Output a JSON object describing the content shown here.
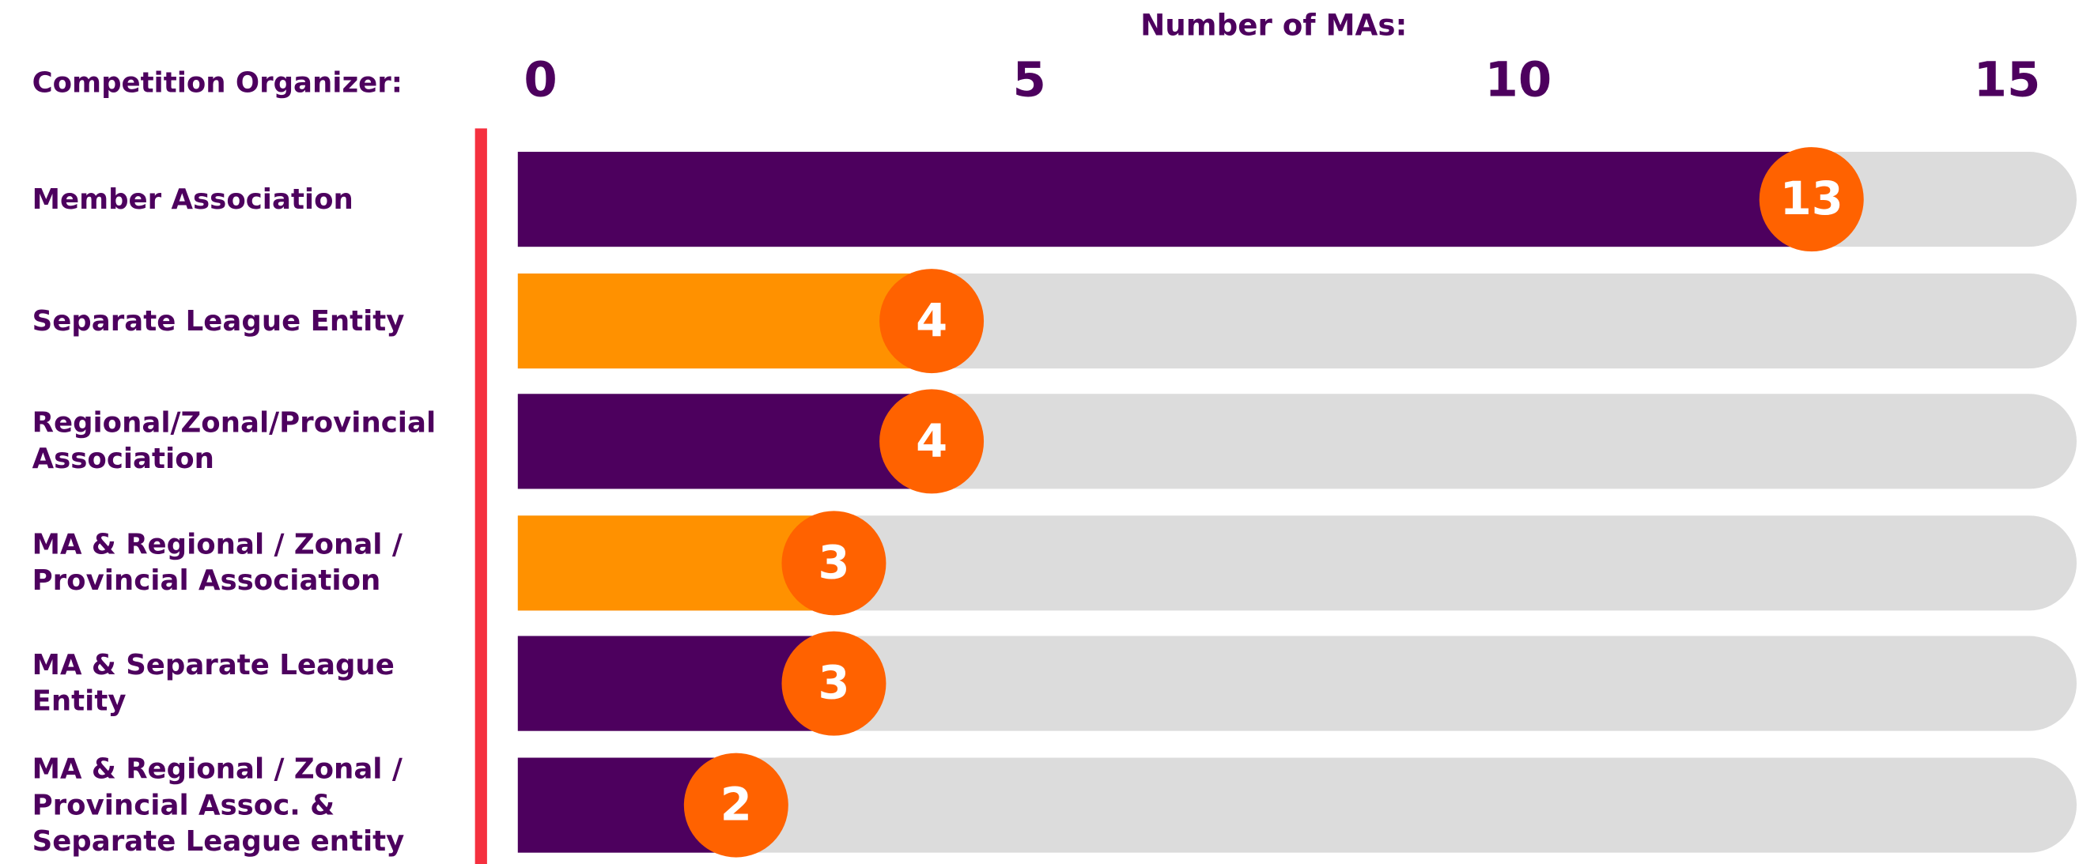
{
  "chart_data": {
    "type": "bar",
    "orientation": "horizontal",
    "title": "Number of MAs:",
    "y_label": "Competition Organizer:",
    "categories": [
      "Member Association",
      "Separate League Entity",
      "Regional/Zonal/Provincial Association",
      "MA & Regional / Zonal / Provincial Association",
      "MA & Separate League Entity",
      "MA & Regional / Zonal / Provincial Assoc. & Separate League entity"
    ],
    "values": [
      13,
      4,
      4,
      3,
      3,
      2
    ],
    "colors": [
      "#4d005e",
      "#ff9100",
      "#4d005e",
      "#ff9100",
      "#4d005e",
      "#4d005e"
    ],
    "xlim": [
      0,
      15
    ],
    "xticks": [
      0,
      5,
      10,
      15
    ]
  }
}
